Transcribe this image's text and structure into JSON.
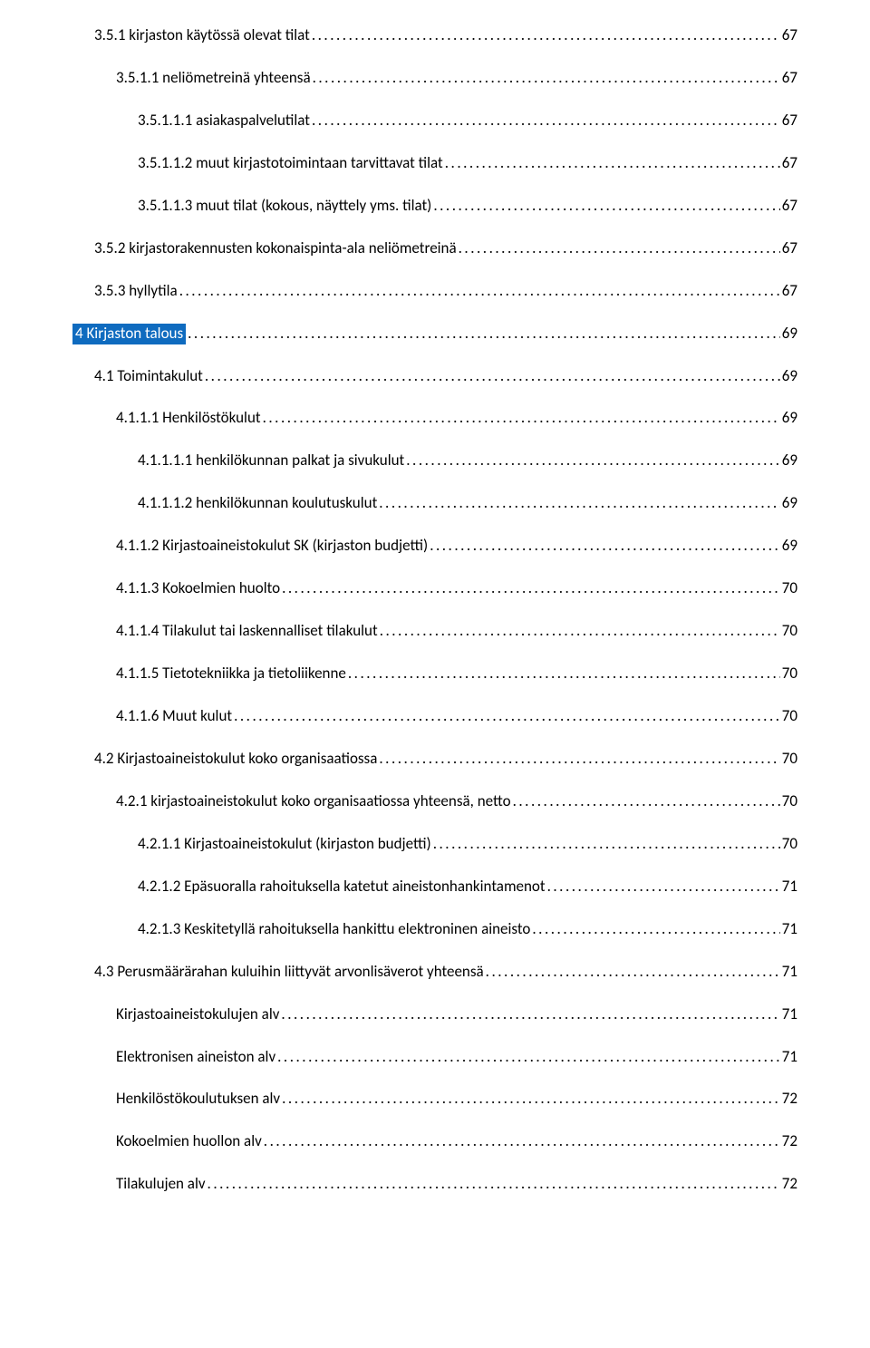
{
  "colors": {
    "highlight_bg": "#0f6bbf",
    "highlight_fg": "#ffffff",
    "text": "#000000",
    "background": "#ffffff"
  },
  "typography": {
    "font_family": "Calibri",
    "font_size_pt": 12
  },
  "toc": [
    {
      "label": "3.5.1 kirjaston käytössä olevat tilat",
      "page": "67",
      "indent": 1
    },
    {
      "label": "3.5.1.1 neliömetreinä yhteensä",
      "page": "67",
      "indent": 2
    },
    {
      "label": "3.5.1.1.1 asiakaspalvelutilat",
      "page": "67",
      "indent": 3
    },
    {
      "label": "3.5.1.1.2 muut kirjastotoimintaan tarvittavat tilat",
      "page": "67",
      "indent": 3
    },
    {
      "label": "3.5.1.1.3 muut tilat (kokous, näyttely yms. tilat)",
      "page": "67",
      "indent": 3
    },
    {
      "label": "3.5.2 kirjastorakennusten kokonaispinta-ala neliömetreinä",
      "page": "67",
      "indent": 1
    },
    {
      "label": "3.5.3 hyllytila",
      "page": "67",
      "indent": 1
    },
    {
      "label": "4 Kirjaston talous",
      "page": "69",
      "indent": 0,
      "highlight": true
    },
    {
      "label": "4.1 Toimintakulut",
      "page": "69",
      "indent": 1
    },
    {
      "label": "4.1.1.1 Henkilöstökulut",
      "page": "69",
      "indent": 2
    },
    {
      "label": "4.1.1.1.1 henkilökunnan palkat ja sivukulut",
      "page": "69",
      "indent": 3
    },
    {
      "label": "4.1.1.1.2 henkilökunnan koulutuskulut",
      "page": "69",
      "indent": 3
    },
    {
      "label": "4.1.1.2 Kirjastoaineistokulut SK (kirjaston budjetti)",
      "page": "69",
      "indent": 2
    },
    {
      "label": "4.1.1.3 Kokoelmien huolto",
      "page": "70",
      "indent": 2
    },
    {
      "label": "4.1.1.4 Tilakulut tai laskennalliset tilakulut",
      "page": "70",
      "indent": 2
    },
    {
      "label": "4.1.1.5 Tietotekniikka ja tietoliikenne",
      "page": "70",
      "indent": 2
    },
    {
      "label": "4.1.1.6 Muut kulut",
      "page": "70",
      "indent": 2
    },
    {
      "label": "4.2 Kirjastoaineistokulut koko organisaatiossa",
      "page": "70",
      "indent": 1
    },
    {
      "label": "4.2.1 kirjastoaineistokulut koko organisaatiossa yhteensä, netto",
      "page": "70",
      "indent": 2
    },
    {
      "label": "4.2.1.1 Kirjastoaineistokulut (kirjaston budjetti)",
      "page": "70",
      "indent": 3
    },
    {
      "label": "4.2.1.2 Epäsuoralla rahoituksella katetut aineistonhankintamenot",
      "page": "71",
      "indent": 3
    },
    {
      "label": "4.2.1.3 Keskitetyllä rahoituksella hankittu elektroninen aineisto",
      "page": "71",
      "indent": 3
    },
    {
      "label": "4.3 Perusmäärärahan kuluihin liittyvät arvonlisäverot yhteensä",
      "page": "71",
      "indent": 1
    },
    {
      "label": "Kirjastoaineistokulujen alv",
      "page": "71",
      "indent": 2
    },
    {
      "label": "Elektronisen aineiston alv",
      "page": "71",
      "indent": 2
    },
    {
      "label": "Henkilöstökoulutuksen alv",
      "page": "72",
      "indent": 2
    },
    {
      "label": "Kokoelmien huollon alv",
      "page": "72",
      "indent": 2
    },
    {
      "label": "Tilakulujen alv",
      "page": "72",
      "indent": 2
    }
  ]
}
